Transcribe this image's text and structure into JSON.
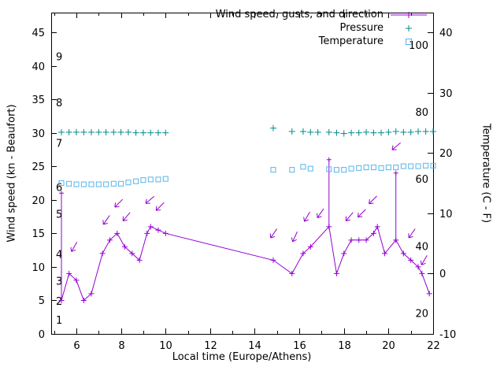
{
  "chart_data": {
    "type": "line",
    "title": "",
    "xlabel": "Local time (Europe/Athens)",
    "ylabel_left": "Wind speed (kn - Beaufort)",
    "ylabel_right": "Temperature (C - F)",
    "x_range": [
      4.87,
      22.0
    ],
    "y_left_range": [
      0,
      47.9
    ],
    "y_right_range": [
      -10,
      43.3
    ],
    "x_ticks": [
      6,
      8,
      10,
      12,
      14,
      16,
      18,
      20,
      22
    ],
    "x_minor_ticks": [
      5,
      7,
      9,
      11,
      13,
      15,
      17,
      19,
      21
    ],
    "y_left_ticks": [
      0,
      5,
      10,
      15,
      20,
      25,
      30,
      35,
      40,
      45
    ],
    "y_right_ticks": [
      -10,
      0,
      10,
      20,
      30,
      40
    ],
    "grid": false,
    "legend_position": "top-right-inside",
    "legend": [
      {
        "label": "Wind speed, gusts, and direction",
        "sample": "line-plus",
        "color": "#9400d3"
      },
      {
        "label": "Pressure",
        "sample": "plus",
        "color": "#008b8b"
      },
      {
        "label": "Temperature",
        "sample": "square",
        "color": "#56b4e9"
      }
    ],
    "beaufort_labels": [
      [
        "1",
        2.0
      ],
      [
        "2",
        4.8
      ],
      [
        "3",
        7.8
      ],
      [
        "4",
        11.8
      ],
      [
        "5",
        17.8
      ],
      [
        "6",
        21.8
      ],
      [
        "7",
        28.4
      ],
      [
        "8",
        34.4
      ],
      [
        "9",
        41.3
      ]
    ],
    "fahrenheit_labels": [
      [
        "20",
        -6.7
      ],
      [
        "40",
        4.4
      ],
      [
        "60",
        15.6
      ],
      [
        "80",
        26.7
      ],
      [
        "100",
        37.8
      ]
    ],
    "series": {
      "wind": {
        "name": "Wind speed, gusts, and direction",
        "color": "#9400d3",
        "units": "kn",
        "points": [
          [
            5.33,
            5,
            21
          ],
          [
            5.67,
            9,
            null
          ],
          [
            6.0,
            8,
            null
          ],
          [
            6.33,
            5,
            null
          ],
          [
            6.67,
            6,
            null
          ],
          [
            7.17,
            12,
            null
          ],
          [
            7.5,
            14,
            null
          ],
          [
            7.83,
            15,
            null
          ],
          [
            8.17,
            13,
            null
          ],
          [
            8.5,
            12,
            null
          ],
          [
            8.83,
            11,
            null
          ],
          [
            9.17,
            15,
            null
          ],
          [
            9.33,
            16,
            null
          ],
          [
            9.67,
            15.5,
            null
          ],
          [
            10.0,
            15,
            null
          ],
          [
            14.83,
            11,
            null
          ],
          [
            15.67,
            9,
            null
          ],
          [
            16.17,
            12,
            null
          ],
          [
            16.5,
            13,
            null
          ],
          [
            17.33,
            16,
            26
          ],
          [
            17.67,
            9,
            null
          ],
          [
            18.0,
            12,
            null
          ],
          [
            18.33,
            14,
            null
          ],
          [
            18.67,
            14,
            null
          ],
          [
            19.0,
            14,
            null
          ],
          [
            19.33,
            15,
            null
          ],
          [
            19.5,
            16,
            null
          ],
          [
            19.83,
            12,
            null
          ],
          [
            20.33,
            14,
            24
          ],
          [
            20.67,
            12,
            null
          ],
          [
            21.0,
            11,
            null
          ],
          [
            21.33,
            10,
            null
          ],
          [
            21.5,
            9,
            null
          ],
          [
            21.83,
            6,
            null
          ]
        ]
      },
      "arrows": [
        [
          5.9,
          13,
          210
        ],
        [
          7.35,
          17,
          215
        ],
        [
          7.9,
          19.5,
          225
        ],
        [
          8.25,
          17.5,
          220
        ],
        [
          9.3,
          20,
          230
        ],
        [
          9.75,
          19,
          225
        ],
        [
          14.85,
          15,
          215
        ],
        [
          15.8,
          14.5,
          205
        ],
        [
          16.35,
          17.5,
          210
        ],
        [
          16.95,
          18,
          215
        ],
        [
          18.25,
          17.5,
          220
        ],
        [
          18.8,
          18,
          225
        ],
        [
          19.3,
          20,
          225
        ],
        [
          20.35,
          28,
          230
        ],
        [
          21.05,
          15,
          215
        ],
        [
          21.6,
          11,
          210
        ]
      ],
      "pressure": {
        "name": "Pressure",
        "color": "#008b8b",
        "points": [
          [
            5.33,
            30.1
          ],
          [
            5.67,
            30.1
          ],
          [
            6.0,
            30.1
          ],
          [
            6.33,
            30.1
          ],
          [
            6.67,
            30.1
          ],
          [
            7.0,
            30.1
          ],
          [
            7.33,
            30.1
          ],
          [
            7.67,
            30.1
          ],
          [
            8.0,
            30.1
          ],
          [
            8.33,
            30.1
          ],
          [
            8.67,
            30.0
          ],
          [
            9.0,
            30.0
          ],
          [
            9.33,
            30.0
          ],
          [
            9.67,
            30.0
          ],
          [
            10.0,
            30.0
          ],
          [
            14.83,
            30.7
          ],
          [
            15.67,
            30.2
          ],
          [
            16.17,
            30.2
          ],
          [
            16.5,
            30.1
          ],
          [
            16.83,
            30.1
          ],
          [
            17.33,
            30.1
          ],
          [
            17.67,
            30.0
          ],
          [
            18.0,
            29.9
          ],
          [
            18.33,
            30.0
          ],
          [
            18.67,
            30.0
          ],
          [
            19.0,
            30.1
          ],
          [
            19.33,
            30.0
          ],
          [
            19.67,
            30.0
          ],
          [
            20.0,
            30.1
          ],
          [
            20.33,
            30.2
          ],
          [
            20.67,
            30.1
          ],
          [
            21.0,
            30.1
          ],
          [
            21.33,
            30.2
          ],
          [
            21.67,
            30.2
          ],
          [
            22.0,
            30.2
          ]
        ]
      },
      "temperature": {
        "name": "Temperature",
        "color": "#56b4e9",
        "units": "C",
        "points": [
          [
            5.33,
            15.0
          ],
          [
            5.67,
            14.9
          ],
          [
            6.0,
            14.8
          ],
          [
            6.33,
            14.8
          ],
          [
            6.67,
            14.8
          ],
          [
            7.0,
            14.8
          ],
          [
            7.33,
            14.8
          ],
          [
            7.67,
            14.9
          ],
          [
            8.0,
            14.9
          ],
          [
            8.33,
            15.1
          ],
          [
            8.67,
            15.3
          ],
          [
            9.0,
            15.5
          ],
          [
            9.33,
            15.6
          ],
          [
            9.67,
            15.6
          ],
          [
            10.0,
            15.7
          ],
          [
            14.83,
            17.2
          ],
          [
            15.67,
            17.2
          ],
          [
            16.17,
            17.7
          ],
          [
            16.5,
            17.4
          ],
          [
            17.33,
            17.3
          ],
          [
            17.67,
            17.2
          ],
          [
            18.0,
            17.2
          ],
          [
            18.33,
            17.4
          ],
          [
            18.67,
            17.5
          ],
          [
            19.0,
            17.6
          ],
          [
            19.33,
            17.6
          ],
          [
            19.67,
            17.5
          ],
          [
            20.0,
            17.6
          ],
          [
            20.33,
            17.6
          ],
          [
            20.67,
            17.8
          ],
          [
            21.0,
            17.8
          ],
          [
            21.33,
            17.8
          ],
          [
            21.67,
            17.9
          ],
          [
            22.0,
            17.9
          ]
        ]
      }
    }
  }
}
